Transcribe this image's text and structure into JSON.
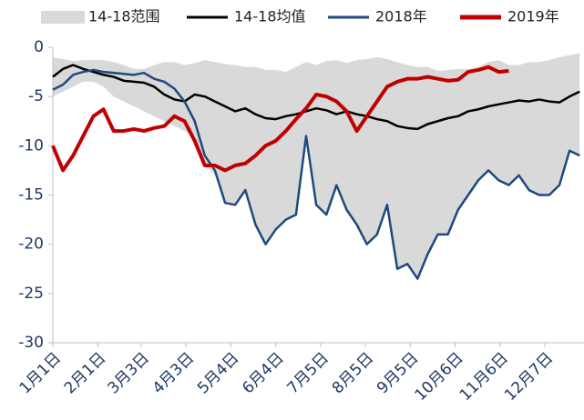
{
  "chart_data": {
    "type": "line",
    "x": [
      1,
      8,
      15,
      22,
      29,
      36,
      43,
      50,
      57,
      64,
      71,
      78,
      85,
      92,
      99,
      106,
      113,
      120,
      127,
      134,
      141,
      148,
      155,
      162,
      169,
      176,
      183,
      190,
      197,
      204,
      211,
      218,
      225,
      232,
      239,
      246,
      253,
      260,
      267,
      274,
      281,
      288,
      295,
      302,
      309,
      316,
      323,
      330,
      337,
      344,
      351,
      358,
      365
    ],
    "range": {
      "name": "14-18范围",
      "color": "#d9d9d9",
      "upper": [
        -1,
        -1.2,
        -1.4,
        -1.3,
        -1.3,
        -1.3,
        -1.5,
        -1.8,
        -2.2,
        -2.2,
        -1.8,
        -1.5,
        -1.5,
        -1.8,
        -1.6,
        -1.3,
        -1.5,
        -1.7,
        -1.8,
        -2,
        -2,
        -2.3,
        -2.3,
        -2.5,
        -2,
        -1.5,
        -1.8,
        -1.4,
        -1.3,
        -1.6,
        -1.3,
        -1.2,
        -1,
        -1.2,
        -1.5,
        -1.8,
        -2,
        -2,
        -2.4,
        -2.3,
        -2.2,
        -2.2,
        -2,
        -1.5,
        -1.3,
        -1.8,
        -1.8,
        -1.5,
        -1.5,
        -1.3,
        -1,
        -0.8,
        -0.6
      ],
      "lower": [
        -5,
        -4.5,
        -4,
        -3.5,
        -3.5,
        -4,
        -5,
        -5.5,
        -6,
        -6.5,
        -7,
        -7.5,
        -8,
        -8.5,
        -9,
        -12,
        -13,
        -15.8,
        -16,
        -14.5,
        -18,
        -20,
        -18.5,
        -17.5,
        -17,
        -9,
        -16,
        -17,
        -14,
        -16.5,
        -18,
        -20,
        -19,
        -16,
        -22.5,
        -22,
        -23.5,
        -21,
        -19,
        -19,
        -16.5,
        -15,
        -13.5,
        -12.5,
        -13.5,
        -14,
        -13,
        -14.5,
        -15,
        -15,
        -14,
        -10.5,
        -11
      ]
    },
    "series": [
      {
        "name": "14-18均值",
        "color": "#000000",
        "values": [
          -3,
          -2.2,
          -1.8,
          -2.2,
          -2.5,
          -2.8,
          -3,
          -3.4,
          -3.5,
          -3.6,
          -4,
          -4.8,
          -5.3,
          -5.5,
          -4.8,
          -5,
          -5.5,
          -6,
          -6.5,
          -6.2,
          -6.8,
          -7.2,
          -7.3,
          -7,
          -6.8,
          -6.5,
          -6.2,
          -6.4,
          -6.8,
          -6.5,
          -6.8,
          -7,
          -7.3,
          -7.5,
          -8,
          -8.2,
          -8.3,
          -7.8,
          -7.5,
          -7.2,
          -7,
          -6.5,
          -6.3,
          -6,
          -5.8,
          -5.6,
          -5.4,
          -5.5,
          -5.3,
          -5.5,
          -5.6,
          -5,
          -4.5
        ]
      },
      {
        "name": "2018年",
        "color": "#1f497d",
        "values": [
          -4.3,
          -3.8,
          -2.8,
          -2.5,
          -2.3,
          -2.5,
          -2.6,
          -2.7,
          -2.8,
          -2.6,
          -3.2,
          -3.5,
          -4.2,
          -5.5,
          -7.5,
          -11,
          -12.5,
          -15.8,
          -16,
          -14.5,
          -18,
          -20,
          -18.5,
          -17.5,
          -17,
          -9,
          -16,
          -17,
          -14,
          -16.5,
          -18,
          -20,
          -19,
          -16,
          -22.5,
          -22,
          -23.5,
          -21,
          -19,
          -19,
          -16.5,
          -15,
          -13.5,
          -12.5,
          -13.5,
          -14,
          -13,
          -14.5,
          -15,
          -15,
          -14,
          -10.5,
          -11
        ]
      },
      {
        "name": "2019年",
        "color": "#c00000",
        "values": [
          -10,
          -12.5,
          -11,
          -9,
          -7,
          -6.3,
          -8.5,
          -8.5,
          -8.3,
          -8.5,
          -8.2,
          -8,
          -7,
          -7.5,
          -9.5,
          -12,
          -12,
          -12.5,
          -12,
          -11.8,
          -11,
          -10,
          -9.5,
          -8.5,
          -7.3,
          -6.2,
          -4.8,
          -5,
          -5.5,
          -6.5,
          -8.5,
          -7,
          -5.5,
          -4,
          -3.5,
          -3.2,
          -3.2,
          -3,
          -3.2,
          -3.4,
          -3.3,
          -2.5,
          -2.3,
          -2,
          -2.5,
          -2.4,
          null,
          null,
          null,
          null,
          null,
          null,
          null
        ]
      }
    ],
    "xlim": [
      1,
      368
    ],
    "xticks": [
      {
        "value": 1,
        "label": "1月1日"
      },
      {
        "value": 32,
        "label": "2月1日"
      },
      {
        "value": 62,
        "label": "3月3日"
      },
      {
        "value": 93,
        "label": "4月3日"
      },
      {
        "value": 124,
        "label": "5月4日"
      },
      {
        "value": 155,
        "label": "6月4日"
      },
      {
        "value": 186,
        "label": "7月5日"
      },
      {
        "value": 217,
        "label": "8月5日"
      },
      {
        "value": 248,
        "label": "9月5日"
      },
      {
        "value": 279,
        "label": "10月6日"
      },
      {
        "value": 310,
        "label": "11月6日"
      },
      {
        "value": 341,
        "label": "12月7日"
      }
    ],
    "ylim": [
      -30,
      0
    ],
    "yticks": [
      0,
      -5,
      -10,
      -15,
      -20,
      -25,
      -30
    ]
  }
}
